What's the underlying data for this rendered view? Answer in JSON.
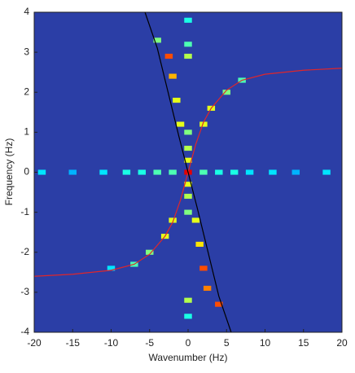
{
  "chart_data": {
    "type": "heatmap",
    "xlabel": "Wavenumber (Hz)",
    "ylabel": "Frequency (Hz)",
    "xlim": [
      -20,
      20
    ],
    "ylim": [
      -4,
      4
    ],
    "xticks": [
      -20,
      -15,
      -10,
      -5,
      0,
      5,
      10,
      15,
      20
    ],
    "yticks": [
      -4,
      -3,
      -2,
      -1,
      0,
      1,
      2,
      3,
      4
    ],
    "zlim": [
      0,
      1
    ],
    "background": "#2b3ea6",
    "colormap": "jet",
    "cells": [
      {
        "x": -19,
        "y": 0,
        "z": 0.35
      },
      {
        "x": -15,
        "y": 0,
        "z": 0.3
      },
      {
        "x": -11,
        "y": 0,
        "z": 0.35
      },
      {
        "x": -8,
        "y": 0,
        "z": 0.4
      },
      {
        "x": -6,
        "y": 0,
        "z": 0.4
      },
      {
        "x": -4,
        "y": 0,
        "z": 0.45
      },
      {
        "x": -2,
        "y": 0,
        "z": 0.45
      },
      {
        "x": 2,
        "y": 0,
        "z": 0.45
      },
      {
        "x": 4,
        "y": 0,
        "z": 0.4
      },
      {
        "x": 6,
        "y": 0,
        "z": 0.4
      },
      {
        "x": 8,
        "y": 0,
        "z": 0.35
      },
      {
        "x": 11,
        "y": 0,
        "z": 0.35
      },
      {
        "x": 14,
        "y": 0,
        "z": 0.3
      },
      {
        "x": 18,
        "y": 0,
        "z": 0.35
      },
      {
        "x": 0,
        "y": 3.8,
        "z": 0.4
      },
      {
        "x": 0,
        "y": 3.2,
        "z": 0.45
      },
      {
        "x": 0,
        "y": 2.9,
        "z": 0.55
      },
      {
        "x": 0,
        "y": 1,
        "z": 0.5
      },
      {
        "x": 0,
        "y": 0.6,
        "z": 0.55
      },
      {
        "x": 0,
        "y": 0.3,
        "z": 0.6
      },
      {
        "x": 0,
        "y": -0.3,
        "z": 0.6
      },
      {
        "x": 0,
        "y": -0.6,
        "z": 0.55
      },
      {
        "x": 0,
        "y": -1,
        "z": 0.5
      },
      {
        "x": 0,
        "y": -3.2,
        "z": 0.55
      },
      {
        "x": 0,
        "y": -3.6,
        "z": 0.4
      },
      {
        "x": -2.5,
        "y": 2.9,
        "z": 0.8
      },
      {
        "x": -2,
        "y": 2.4,
        "z": 0.7
      },
      {
        "x": -1.5,
        "y": 1.8,
        "z": 0.6
      },
      {
        "x": -1,
        "y": 1.2,
        "z": 0.6
      },
      {
        "x": 1,
        "y": -1.2,
        "z": 0.6
      },
      {
        "x": 1.5,
        "y": -1.8,
        "z": 0.65
      },
      {
        "x": 2,
        "y": -2.4,
        "z": 0.8
      },
      {
        "x": 2.5,
        "y": -2.9,
        "z": 0.75
      },
      {
        "x": 4,
        "y": -3.3,
        "z": 0.8
      },
      {
        "x": -4,
        "y": 3.3,
        "z": 0.5
      },
      {
        "x": 2,
        "y": 1.2,
        "z": 0.6
      },
      {
        "x": 3,
        "y": 1.6,
        "z": 0.6
      },
      {
        "x": 5,
        "y": 2,
        "z": 0.5
      },
      {
        "x": 7,
        "y": 2.3,
        "z": 0.45
      },
      {
        "x": -2,
        "y": -1.2,
        "z": 0.6
      },
      {
        "x": -3,
        "y": -1.6,
        "z": 0.6
      },
      {
        "x": -5,
        "y": -2,
        "z": 0.5
      },
      {
        "x": -7,
        "y": -2.3,
        "z": 0.45
      },
      {
        "x": -10,
        "y": -2.4,
        "z": 0.35
      },
      {
        "x": 0,
        "y": 0,
        "z": 0.9
      }
    ],
    "lines": [
      {
        "color": "#e0262a",
        "x": [
          -20,
          -15,
          -10,
          -7,
          -5,
          -3,
          -2,
          -1,
          0,
          1,
          2,
          3,
          5,
          7,
          10,
          15,
          20
        ],
        "y": [
          -2.6,
          -2.55,
          -2.45,
          -2.3,
          -2.05,
          -1.6,
          -1.25,
          -0.7,
          0,
          0.7,
          1.25,
          1.6,
          2.05,
          2.3,
          2.45,
          2.55,
          2.6
        ]
      },
      {
        "color": "#000000",
        "x": [
          -5.6,
          -4,
          -2.6,
          -1.2,
          0,
          1.2,
          2.6,
          4,
          5.6
        ],
        "y": [
          4,
          3.1,
          2,
          0.9,
          0,
          -0.9,
          -2,
          -3.1,
          -4
        ]
      }
    ]
  }
}
